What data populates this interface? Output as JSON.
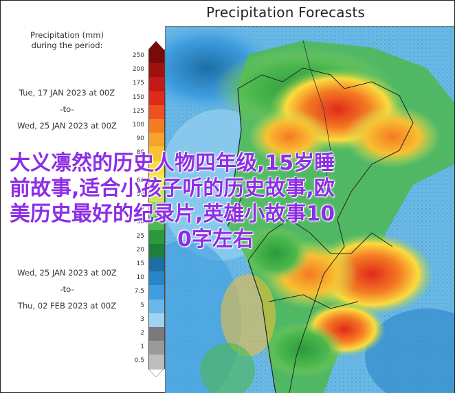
{
  "title": "Precipitation Forecasts",
  "legend": {
    "heading_line1": "Precipitation (mm)",
    "heading_line2": "during the period:",
    "period1": {
      "start": "Tue, 17 JAN 2023 at 00Z",
      "sep": "-to-",
      "end": "Wed, 25 JAN 2023 at 00Z"
    },
    "period2": {
      "start": "Wed, 25 JAN 2023 at 00Z",
      "sep": "-to-",
      "end": "Thu, 02 FEB 2023 at 00Z"
    },
    "bins": [
      {
        "label": "250",
        "color": "#7a0a0a"
      },
      {
        "label": "200",
        "color": "#a01010"
      },
      {
        "label": "175",
        "color": "#c41818"
      },
      {
        "label": "150",
        "color": "#e02a1c"
      },
      {
        "label": "125",
        "color": "#ef5020"
      },
      {
        "label": "100",
        "color": "#f47b22"
      },
      {
        "label": "90",
        "color": "#f7a22a"
      },
      {
        "label": "80",
        "color": "#f9c033"
      },
      {
        "label": "70",
        "color": "#fbdc3f"
      },
      {
        "label": "60",
        "color": "#f2ec58"
      },
      {
        "label": "50",
        "color": "#c9e35a"
      },
      {
        "label": "40",
        "color": "#8fd05b"
      },
      {
        "label": "30",
        "color": "#4cb84e"
      },
      {
        "label": "25",
        "color": "#2a9a3c"
      },
      {
        "label": "20",
        "color": "#1d7f3a"
      },
      {
        "label": "15",
        "color": "#1c6ea5"
      },
      {
        "label": "10",
        "color": "#2a84c8"
      },
      {
        "label": "7.5",
        "color": "#3f9ee0"
      },
      {
        "label": "5",
        "color": "#6ab8ea"
      },
      {
        "label": "3",
        "color": "#9fd3f2"
      },
      {
        "label": "2",
        "color": "#7a7a7a"
      },
      {
        "label": "1",
        "color": "#9a9a9a"
      },
      {
        "label": "0.5",
        "color": "#bdbdbd"
      }
    ]
  },
  "overlay_text": {
    "line1": "大义凛然的历史人物四年级,15岁睡",
    "line2": "前故事,适合小孩子听的历史故事,欧",
    "line3": "美历史最好的纪录片,英雄小故事10",
    "line4": "0字左右"
  }
}
